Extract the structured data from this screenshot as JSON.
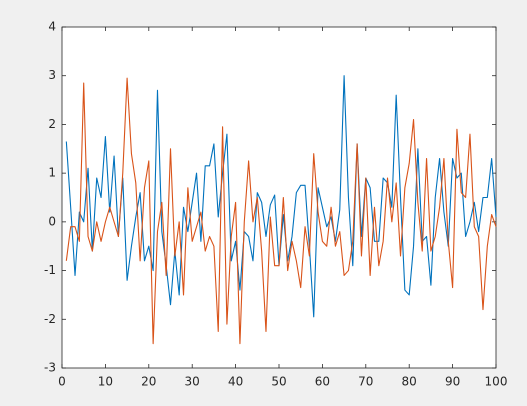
{
  "chart_data": {
    "type": "line",
    "x": [
      1,
      2,
      3,
      4,
      5,
      6,
      7,
      8,
      9,
      10,
      11,
      12,
      13,
      14,
      15,
      16,
      17,
      18,
      19,
      20,
      21,
      22,
      23,
      24,
      25,
      26,
      27,
      28,
      29,
      30,
      31,
      32,
      33,
      34,
      35,
      36,
      37,
      38,
      39,
      40,
      41,
      42,
      43,
      44,
      45,
      46,
      47,
      48,
      49,
      50,
      51,
      52,
      53,
      54,
      55,
      56,
      57,
      58,
      59,
      60,
      61,
      62,
      63,
      64,
      65,
      66,
      67,
      68,
      69,
      70,
      71,
      72,
      73,
      74,
      75,
      76,
      77,
      78,
      79,
      80,
      81,
      82,
      83,
      84,
      85,
      86,
      87,
      88,
      89,
      90,
      91,
      92,
      93,
      94,
      95,
      96,
      97,
      98,
      99,
      100
    ],
    "series": [
      {
        "color": "#0072bd",
        "values": [
          1.65,
          0.3,
          -1.1,
          0.2,
          0.0,
          1.1,
          -0.6,
          0.9,
          0.5,
          1.75,
          0.2,
          1.35,
          -0.3,
          0.9,
          -1.2,
          -0.5,
          0.1,
          0.6,
          -0.8,
          -0.5,
          -1.0,
          2.7,
          -0.2,
          -0.9,
          -1.7,
          -0.6,
          -1.5,
          0.3,
          -0.2,
          0.4,
          1.0,
          -0.4,
          1.15,
          1.15,
          1.6,
          0.1,
          1.0,
          1.8,
          -0.8,
          -0.4,
          -1.4,
          -0.2,
          -0.3,
          -0.8,
          0.6,
          0.4,
          -0.3,
          0.35,
          0.55,
          -0.9,
          0.15,
          -0.8,
          -0.3,
          0.6,
          0.75,
          0.75,
          -0.5,
          -1.95,
          0.7,
          0.3,
          -0.1,
          0.1,
          -0.4,
          0.25,
          3.0,
          0.5,
          -0.9,
          1.6,
          -0.3,
          0.9,
          0.7,
          -0.4,
          -0.4,
          0.9,
          0.8,
          0.3,
          2.6,
          0.5,
          -1.4,
          -1.5,
          -0.5,
          1.5,
          -0.4,
          -0.3,
          -1.3,
          0.5,
          1.3,
          0.2,
          -0.5,
          1.3,
          0.9,
          1.0,
          -0.3,
          0.0,
          0.4,
          -0.2,
          0.5,
          0.5,
          1.3,
          0.1
        ]
      },
      {
        "color": "#d95319",
        "values": [
          -0.8,
          -0.1,
          -0.1,
          -0.4,
          2.85,
          -0.3,
          -0.6,
          0.0,
          -0.4,
          0.0,
          0.3,
          0.0,
          -0.3,
          1.0,
          2.95,
          1.4,
          0.8,
          -0.8,
          0.7,
          1.25,
          -2.5,
          -0.2,
          0.4,
          -1.1,
          1.5,
          -0.7,
          0.0,
          -1.5,
          0.7,
          -0.4,
          -0.1,
          0.2,
          -0.6,
          -0.3,
          -0.5,
          -2.25,
          1.95,
          -2.1,
          -0.3,
          0.4,
          -2.5,
          0.0,
          1.25,
          0.0,
          0.5,
          -0.6,
          -2.25,
          0.1,
          -0.9,
          -0.9,
          0.5,
          -1.0,
          -0.4,
          -0.8,
          -1.35,
          -0.1,
          -0.7,
          1.4,
          0.2,
          -0.4,
          -0.5,
          0.3,
          -0.5,
          -0.2,
          -1.1,
          -1.0,
          -0.4,
          1.6,
          -0.7,
          0.9,
          -1.1,
          0.3,
          -0.9,
          -0.4,
          0.9,
          0.0,
          0.8,
          -0.7,
          0.7,
          1.2,
          2.1,
          0.4,
          -0.6,
          1.3,
          -0.6,
          -0.3,
          0.3,
          1.3,
          -0.4,
          -1.35,
          1.9,
          0.6,
          0.5,
          1.8,
          -0.1,
          -0.3,
          -1.8,
          -0.5,
          0.15,
          -0.1
        ]
      }
    ],
    "xlim": [
      0,
      100
    ],
    "ylim": [
      -3,
      4
    ],
    "xticks": [
      0,
      10,
      20,
      30,
      40,
      50,
      60,
      70,
      80,
      90,
      100
    ],
    "yticks": [
      -3,
      -2,
      -1,
      0,
      1,
      2,
      3,
      4
    ],
    "grid": false
  }
}
